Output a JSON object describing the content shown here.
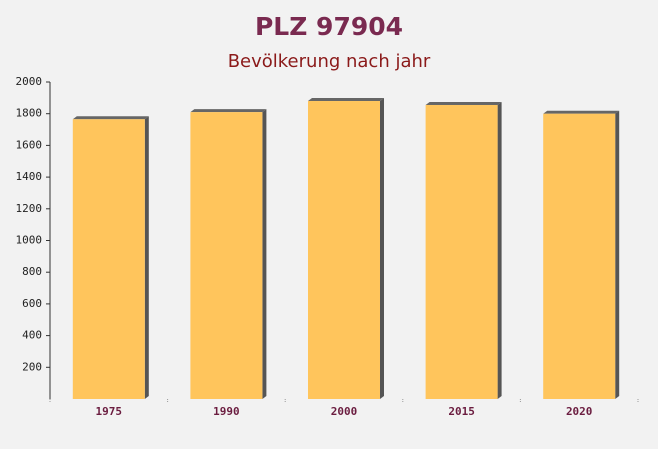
{
  "chart_data": {
    "type": "bar",
    "title": "PLZ 97904",
    "subtitle": "Bevölkerung nach jahr",
    "categories": [
      "1975",
      "1990",
      "2000",
      "2015",
      "2020"
    ],
    "values": [
      1765,
      1810,
      1880,
      1855,
      1800
    ],
    "color": "#ffc55c",
    "ylim": [
      0,
      2000
    ],
    "yticks": [
      200,
      400,
      600,
      800,
      1000,
      1200,
      1400,
      1600,
      1800,
      2000
    ]
  }
}
